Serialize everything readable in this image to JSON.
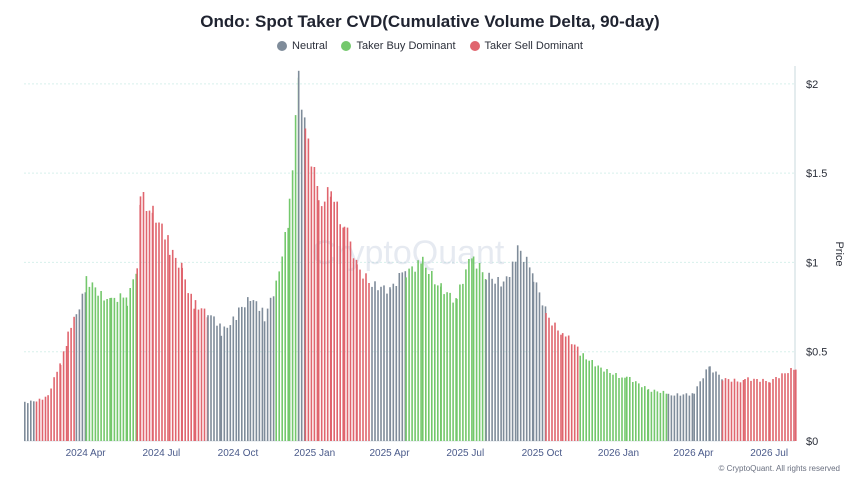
{
  "chart_data": {
    "type": "bar",
    "title": "Ondo: Spot Taker CVD(Cumulative Volume Delta, 90-day)",
    "ylabel": "Price",
    "ylim": [
      0,
      2.1
    ],
    "y_ticks": [
      "$0",
      "$0.5",
      "$1",
      "$1.5",
      "$2"
    ],
    "y_tick_values": [
      0,
      0.5,
      1,
      1.5,
      2
    ],
    "x_ticks": [
      "2024 Apr",
      "2024 Jul",
      "2024 Oct",
      "2025 Jan",
      "2025 Apr",
      "2025 Jul",
      "2025 Oct",
      "2026 Jan",
      "2026 Apr",
      "2026 Jul"
    ],
    "x_tick_dates": [
      "2024-04-01",
      "2024-07-01",
      "2024-10-01",
      "2025-01-01",
      "2025-04-01",
      "2025-07-01",
      "2025-10-01",
      "2026-01-01",
      "2026-04-01",
      "2026-07-01"
    ],
    "x_range": [
      "2024-01-18",
      "2026-08-01"
    ],
    "legend_position": "top-center",
    "grid": true,
    "series": [
      {
        "name": "Neutral",
        "color": "#7f8c9a"
      },
      {
        "name": "Taker Buy Dominant",
        "color": "#74c86c"
      },
      {
        "name": "Taker Sell Dominant",
        "color": "#e0656e"
      }
    ],
    "points": [
      {
        "date": "2024-01-18",
        "price": 0.22,
        "state": "Neutral"
      },
      {
        "date": "2024-02-01",
        "price": 0.23,
        "state": "Taker Sell Dominant"
      },
      {
        "date": "2024-02-15",
        "price": 0.26,
        "state": "Taker Sell Dominant"
      },
      {
        "date": "2024-03-01",
        "price": 0.45,
        "state": "Taker Sell Dominant"
      },
      {
        "date": "2024-03-10",
        "price": 0.58,
        "state": "Taker Sell Dominant"
      },
      {
        "date": "2024-03-20",
        "price": 0.72,
        "state": "Neutral"
      },
      {
        "date": "2024-04-01",
        "price": 0.88,
        "state": "Taker Buy Dominant"
      },
      {
        "date": "2024-04-15",
        "price": 0.82,
        "state": "Taker Buy Dominant"
      },
      {
        "date": "2024-05-01",
        "price": 0.78,
        "state": "Taker Buy Dominant"
      },
      {
        "date": "2024-05-20",
        "price": 0.8,
        "state": "Taker Buy Dominant"
      },
      {
        "date": "2024-06-01",
        "price": 1.0,
        "state": "Taker Sell Dominant"
      },
      {
        "date": "2024-06-05",
        "price": 1.38,
        "state": "Taker Sell Dominant"
      },
      {
        "date": "2024-06-20",
        "price": 1.25,
        "state": "Taker Sell Dominant"
      },
      {
        "date": "2024-07-10",
        "price": 1.1,
        "state": "Taker Sell Dominant"
      },
      {
        "date": "2024-07-25",
        "price": 0.98,
        "state": "Taker Sell Dominant"
      },
      {
        "date": "2024-08-10",
        "price": 0.75,
        "state": "Taker Sell Dominant"
      },
      {
        "date": "2024-08-25",
        "price": 0.7,
        "state": "Neutral"
      },
      {
        "date": "2024-09-10",
        "price": 0.62,
        "state": "Neutral"
      },
      {
        "date": "2024-10-01",
        "price": 0.72,
        "state": "Neutral"
      },
      {
        "date": "2024-10-15",
        "price": 0.78,
        "state": "Neutral"
      },
      {
        "date": "2024-11-01",
        "price": 0.7,
        "state": "Neutral"
      },
      {
        "date": "2024-11-15",
        "price": 0.9,
        "state": "Taker Buy Dominant"
      },
      {
        "date": "2024-12-01",
        "price": 1.3,
        "state": "Taker Buy Dominant"
      },
      {
        "date": "2024-12-12",
        "price": 2.0,
        "state": "Neutral"
      },
      {
        "date": "2024-12-20",
        "price": 1.7,
        "state": "Taker Sell Dominant"
      },
      {
        "date": "2025-01-05",
        "price": 1.35,
        "state": "Taker Sell Dominant"
      },
      {
        "date": "2025-01-20",
        "price": 1.45,
        "state": "Taker Sell Dominant"
      },
      {
        "date": "2025-02-05",
        "price": 1.2,
        "state": "Taker Sell Dominant"
      },
      {
        "date": "2025-02-20",
        "price": 0.95,
        "state": "Taker Sell Dominant"
      },
      {
        "date": "2025-03-10",
        "price": 0.85,
        "state": "Neutral"
      },
      {
        "date": "2025-04-01",
        "price": 0.82,
        "state": "Neutral"
      },
      {
        "date": "2025-04-20",
        "price": 0.95,
        "state": "Taker Buy Dominant"
      },
      {
        "date": "2025-05-10",
        "price": 1.0,
        "state": "Taker Buy Dominant"
      },
      {
        "date": "2025-06-01",
        "price": 0.85,
        "state": "Taker Buy Dominant"
      },
      {
        "date": "2025-06-20",
        "price": 0.78,
        "state": "Taker Buy Dominant"
      },
      {
        "date": "2025-07-10",
        "price": 1.05,
        "state": "Taker Buy Dominant"
      },
      {
        "date": "2025-07-25",
        "price": 0.95,
        "state": "Neutral"
      },
      {
        "date": "2025-08-15",
        "price": 0.9,
        "state": "Neutral"
      },
      {
        "date": "2025-09-01",
        "price": 1.05,
        "state": "Neutral"
      },
      {
        "date": "2025-09-20",
        "price": 0.92,
        "state": "Neutral"
      },
      {
        "date": "2025-10-05",
        "price": 0.72,
        "state": "Taker Sell Dominant"
      },
      {
        "date": "2025-10-25",
        "price": 0.6,
        "state": "Taker Sell Dominant"
      },
      {
        "date": "2025-11-15",
        "price": 0.5,
        "state": "Taker Buy Dominant"
      },
      {
        "date": "2025-12-10",
        "price": 0.42,
        "state": "Taker Buy Dominant"
      },
      {
        "date": "2026-01-10",
        "price": 0.35,
        "state": "Taker Buy Dominant"
      },
      {
        "date": "2026-02-05",
        "price": 0.28,
        "state": "Taker Buy Dominant"
      },
      {
        "date": "2026-03-01",
        "price": 0.26,
        "state": "Neutral"
      },
      {
        "date": "2026-04-01",
        "price": 0.27,
        "state": "Neutral"
      },
      {
        "date": "2026-04-20",
        "price": 0.42,
        "state": "Neutral"
      },
      {
        "date": "2026-05-05",
        "price": 0.36,
        "state": "Taker Sell Dominant"
      },
      {
        "date": "2026-06-01",
        "price": 0.34,
        "state": "Taker Sell Dominant"
      },
      {
        "date": "2026-07-01",
        "price": 0.33,
        "state": "Taker Sell Dominant"
      },
      {
        "date": "2026-08-01",
        "price": 0.4,
        "state": "Taker Sell Dominant"
      }
    ]
  },
  "watermark": "CryptoQuant",
  "footer": "© CryptoQuant. All rights reserved"
}
